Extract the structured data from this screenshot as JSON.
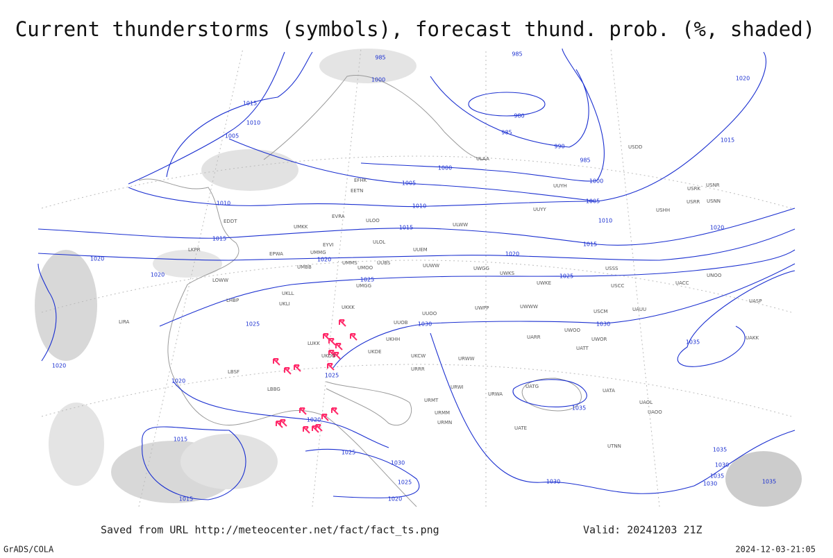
{
  "title": "Current thunderstorms (symbols), forecast thund. prob. (%, shaded)",
  "footer": {
    "saved": "Saved from URL http://meteocenter.net/fact/fact_ts.png",
    "valid": "Valid: 20241203 21Z",
    "software": "GrADS/COLA",
    "timestamp": "2024-12-03-21:05"
  },
  "isobar_labels": [
    "985",
    "985",
    "1000",
    "980",
    "985",
    "990",
    "985",
    "1000",
    "1005",
    "1010",
    "1015",
    "1020",
    "1015",
    "1020",
    "1015",
    "1010",
    "1005",
    "1000",
    "1005",
    "1010",
    "1010",
    "1015",
    "1015",
    "1020",
    "1020",
    "1020",
    "1020",
    "1025",
    "1025",
    "1025",
    "1030",
    "1030",
    "1035",
    "1025",
    "1020",
    "1020",
    "1035",
    "1020",
    "1015",
    "1025",
    "1030",
    "1025",
    "1020",
    "1015",
    "1030",
    "1035",
    "1030",
    "1035",
    "1035",
    "1030"
  ],
  "stations": [
    "ULAA",
    "UUYH",
    "UUYY",
    "ULWW",
    "ULOL",
    "UUEM",
    "EVRA",
    "EETN",
    "EFHK",
    "ULOO",
    "UMKK",
    "EPWA",
    "UMMG",
    "UMBB",
    "EYVI",
    "UMMS",
    "UMOO",
    "UUBS",
    "UUWW",
    "UWGG",
    "UWKS",
    "UWKE",
    "UMGG",
    "UKKK",
    "UKLL",
    "UKLI",
    "UKHH",
    "LUKK",
    "UKOO",
    "UKDE",
    "UKCW",
    "URRR",
    "URWI",
    "URWA",
    "URMT",
    "URMM",
    "URMN",
    "UUOO",
    "UUOB",
    "UWPP",
    "UWWW",
    "URWW",
    "UARR",
    "UATT",
    "UWOO",
    "UWOR",
    "UATG",
    "UATA",
    "UAOL",
    "UAOO",
    "UTNN",
    "UATE",
    "LBBG",
    "LBSF",
    "LIRA",
    "LOWW",
    "LKPR",
    "LHBP",
    "EDDT",
    "USSS",
    "USCC",
    "UACC",
    "UNOO",
    "UASP",
    "UAKK",
    "USCM",
    "UAUU",
    "USRR",
    "USNN",
    "USRK",
    "USNR",
    "USHH",
    "USDD"
  ]
}
